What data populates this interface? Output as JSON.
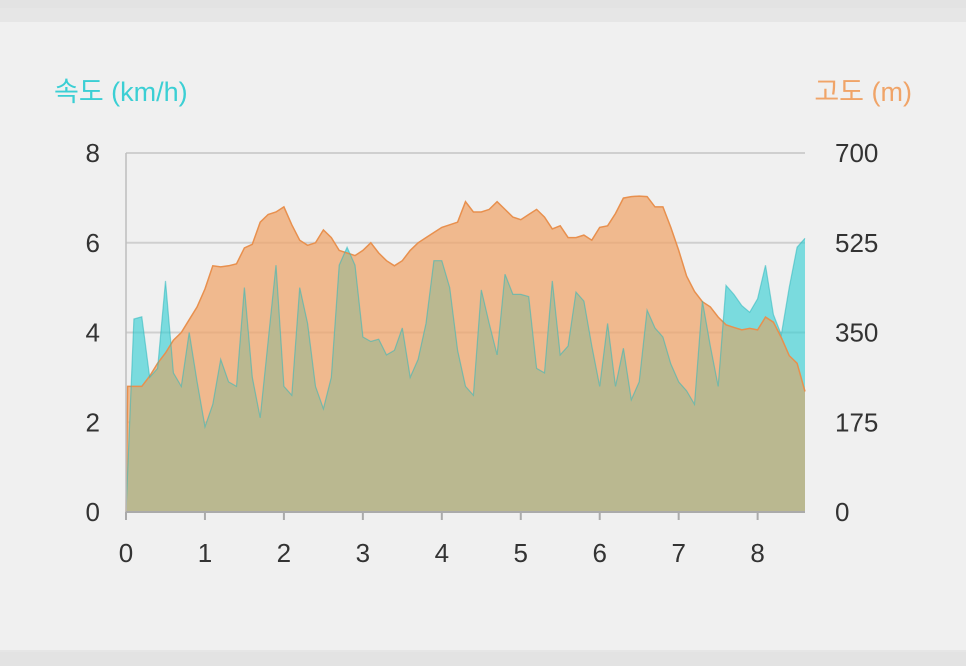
{
  "chart_data": {
    "type": "area",
    "left_axis_title": "속도 (km/h)",
    "right_axis_title": "고도 (m)",
    "colors": {
      "speed": "#3bcfd4",
      "altitude": "#f0a468",
      "overlap": "#b8b890",
      "grid": "#cfcfcf"
    },
    "x_ticks": [
      "0",
      "1",
      "2",
      "3",
      "4",
      "5",
      "6",
      "7",
      "8"
    ],
    "y_left_ticks": [
      "0",
      "2",
      "4",
      "6",
      "8"
    ],
    "y_right_ticks": [
      "0",
      "175",
      "350",
      "525",
      "700"
    ],
    "xlim": [
      0,
      8.6
    ],
    "ylim_left": [
      0,
      8
    ],
    "ylim_right": [
      0,
      700
    ],
    "grid": true,
    "series": [
      {
        "name": "속도 (km/h)",
        "axis": "left",
        "x": [
          0,
          0.1,
          0.2,
          0.3,
          0.4,
          0.5,
          0.6,
          0.7,
          0.8,
          0.9,
          1.0,
          1.1,
          1.2,
          1.3,
          1.4,
          1.5,
          1.6,
          1.7,
          1.8,
          1.9,
          2.0,
          2.1,
          2.2,
          2.3,
          2.4,
          2.5,
          2.6,
          2.7,
          2.8,
          2.9,
          3.0,
          3.1,
          3.2,
          3.3,
          3.4,
          3.5,
          3.6,
          3.7,
          3.8,
          3.9,
          4.0,
          4.1,
          4.2,
          4.3,
          4.4,
          4.5,
          4.6,
          4.7,
          4.8,
          4.9,
          5.0,
          5.1,
          5.2,
          5.3,
          5.4,
          5.5,
          5.6,
          5.7,
          5.8,
          5.9,
          6.0,
          6.1,
          6.2,
          6.3,
          6.4,
          6.5,
          6.6,
          6.7,
          6.8,
          6.9,
          7.0,
          7.1,
          7.2,
          7.3,
          7.4,
          7.5,
          7.6,
          7.7,
          7.8,
          7.9,
          8.0,
          8.1,
          8.2,
          8.3,
          8.4,
          8.5,
          8.6
        ],
        "values": [
          0,
          4.3,
          4.35,
          3.0,
          3.2,
          5.15,
          3.1,
          2.8,
          4.0,
          2.9,
          1.9,
          2.4,
          3.4,
          2.9,
          2.8,
          5.0,
          3.0,
          2.1,
          3.8,
          5.5,
          2.8,
          2.6,
          5.0,
          4.2,
          2.8,
          2.3,
          3.0,
          5.5,
          5.9,
          5.5,
          3.9,
          3.8,
          3.85,
          3.5,
          3.6,
          4.1,
          3.0,
          3.4,
          4.2,
          5.6,
          5.6,
          5.0,
          3.6,
          2.8,
          2.6,
          4.95,
          4.2,
          3.5,
          5.3,
          4.85,
          4.85,
          4.8,
          3.2,
          3.1,
          5.15,
          3.5,
          3.7,
          4.9,
          4.7,
          3.7,
          2.8,
          4.2,
          2.8,
          3.65,
          2.5,
          2.9,
          4.5,
          4.1,
          3.9,
          3.3,
          2.9,
          2.7,
          2.4,
          4.7,
          3.7,
          2.8,
          5.05,
          4.85,
          4.6,
          4.45,
          4.75,
          5.5,
          4.4,
          3.95,
          5.0,
          5.9,
          6.1
        ]
      },
      {
        "name": "고도 (m)",
        "axis": "right",
        "x": [
          0,
          0.02,
          0.2,
          0.3,
          0.4,
          0.5,
          0.6,
          0.7,
          0.8,
          0.9,
          1.0,
          1.1,
          1.2,
          1.3,
          1.4,
          1.5,
          1.6,
          1.7,
          1.8,
          1.9,
          2.0,
          2.1,
          2.2,
          2.3,
          2.4,
          2.5,
          2.6,
          2.7,
          2.8,
          2.9,
          3.0,
          3.1,
          3.2,
          3.3,
          3.4,
          3.5,
          3.6,
          3.7,
          3.8,
          3.9,
          4.0,
          4.1,
          4.2,
          4.3,
          4.4,
          4.5,
          4.6,
          4.7,
          4.8,
          4.9,
          5.0,
          5.1,
          5.2,
          5.3,
          5.4,
          5.5,
          5.6,
          5.7,
          5.8,
          5.9,
          6.0,
          6.1,
          6.2,
          6.3,
          6.4,
          6.5,
          6.6,
          6.7,
          6.8,
          6.9,
          7.0,
          7.1,
          7.2,
          7.3,
          7.4,
          7.5,
          7.6,
          7.7,
          7.8,
          7.9,
          8.0,
          8.1,
          8.2,
          8.3,
          8.4,
          8.5,
          8.6
        ],
        "values": [
          0,
          245,
          245,
          265,
          290,
          310,
          335,
          350,
          375,
          400,
          435,
          480,
          478,
          480,
          484,
          515,
          522,
          565,
          580,
          585,
          595,
          560,
          530,
          520,
          525,
          550,
          535,
          510,
          505,
          500,
          510,
          525,
          505,
          490,
          480,
          490,
          510,
          525,
          535,
          545,
          555,
          560,
          565,
          605,
          585,
          585,
          590,
          605,
          590,
          575,
          570,
          580,
          590,
          575,
          552,
          558,
          535,
          535,
          540,
          530,
          555,
          558,
          582,
          612,
          615,
          616,
          615,
          595,
          595,
          555,
          510,
          460,
          430,
          410,
          400,
          380,
          365,
          360,
          355,
          358,
          355,
          380,
          370,
          340,
          305,
          290,
          235
        ]
      }
    ]
  }
}
